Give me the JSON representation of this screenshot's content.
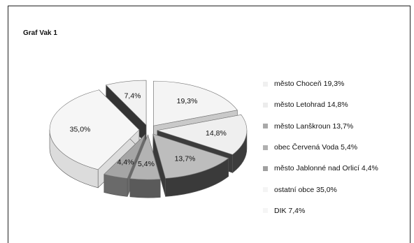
{
  "title": "Graf Vak 1",
  "chart_data": {
    "type": "pie",
    "title": "Graf Vak 1",
    "legend_position": "right",
    "slices": [
      {
        "label": "město Choceň",
        "value": 19.3,
        "value_label": "19,3%",
        "legend": "město Choceň 19,3%",
        "top": "#f4f4f4",
        "side": "#c9c9c9",
        "swatch": "#f0f0f0"
      },
      {
        "label": "město Letohrad",
        "value": 14.8,
        "value_label": "14,8%",
        "legend": "město Letohrad 14,8%",
        "top": "#efefef",
        "side": "#3c3c3c",
        "swatch": "#ececec"
      },
      {
        "label": "město Lanškroun",
        "value": 13.7,
        "value_label": "13,7%",
        "legend": "město Lanškroun 13,7%",
        "top": "#bdbdbd",
        "side": "#3a3a3a",
        "swatch": "#a9a9a9"
      },
      {
        "label": "obec Červená Voda",
        "value": 5.4,
        "value_label": "5,4%",
        "legend": "obec Červená Voda 5,4%",
        "top": "#b3b3b3",
        "side": "#5a5a5a",
        "swatch": "#b0b0b0"
      },
      {
        "label": "město Jablonné nad Orlicí",
        "value": 4.4,
        "value_label": "4,4%",
        "legend": "město Jablonné nad Orlicí 4,4%",
        "top": "#a5a5a5",
        "side": "#6a6a6a",
        "swatch": "#a0a0a0"
      },
      {
        "label": "ostatní obce",
        "value": 35.0,
        "value_label": "35,0%",
        "legend": "ostatní obce 35,0%",
        "top": "#f6f6f6",
        "side": "#dcdcdc",
        "swatch": "#f4f4f4"
      },
      {
        "label": "DIK",
        "value": 7.4,
        "value_label": "7,4%",
        "legend": "DIK 7,4%",
        "top": "#f2f2f2",
        "side": "#333333",
        "swatch": "#f5f5f5"
      }
    ]
  }
}
